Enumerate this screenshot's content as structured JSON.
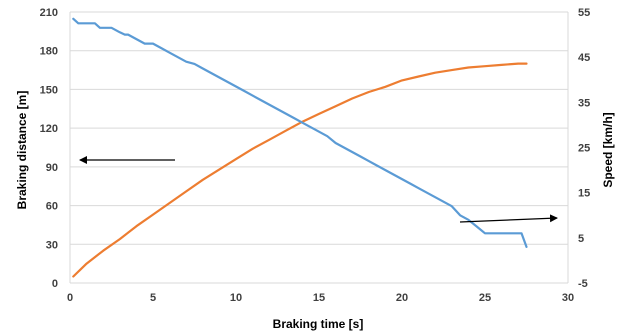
{
  "chart_data": {
    "type": "line",
    "title": "",
    "xlabel": "Braking time [s]",
    "ylabel": "Braking distance [m]",
    "y2label": "Speed [km/h]",
    "xlim": [
      0,
      30
    ],
    "ylim": [
      0,
      210
    ],
    "y2lim": [
      -5,
      55
    ],
    "xticks": [
      0,
      5,
      10,
      15,
      20,
      25,
      30
    ],
    "yticks": [
      0,
      30,
      60,
      90,
      120,
      150,
      180,
      210
    ],
    "y2ticks": [
      -5,
      5,
      15,
      25,
      35,
      45,
      55
    ],
    "grid": "horizontal",
    "legend": "none",
    "colors": {
      "speed": "#5B9BD5",
      "distance": "#ED7D31",
      "axis": "#d9d9d9",
      "grid": "#d9d9d9",
      "arrow": "#000000"
    },
    "series": [
      {
        "key": "distance",
        "axis": "left",
        "x": [
          0.2,
          1,
          2,
          3,
          4,
          5,
          6,
          7,
          8,
          9,
          10,
          11,
          12,
          13,
          14,
          15,
          16,
          17,
          18,
          19,
          20,
          21,
          22,
          23,
          24,
          25,
          26,
          27,
          27.5
        ],
        "values": [
          5,
          15,
          25,
          34,
          44,
          53,
          62,
          71,
          80,
          88,
          96,
          104,
          111,
          118,
          125,
          131,
          137,
          143,
          148,
          152,
          157,
          160,
          163,
          165,
          167,
          168,
          169,
          170,
          170
        ]
      },
      {
        "key": "speed",
        "axis": "right",
        "x": [
          0.2,
          0.5,
          0.8,
          1.5,
          1.8,
          2.5,
          3,
          3.3,
          3.5,
          4,
          4.5,
          5,
          5.5,
          6,
          6.5,
          7,
          7.5,
          8,
          8.5,
          9,
          9.5,
          10,
          10.5,
          11,
          11.5,
          12,
          12.5,
          13,
          13.5,
          14,
          14.5,
          15,
          15.5,
          16,
          16.5,
          17,
          17.5,
          18,
          18.5,
          19,
          19.5,
          20,
          20.5,
          21,
          21.5,
          22,
          22.5,
          23,
          23.5,
          24,
          24.5,
          25,
          25.5,
          26,
          26.5,
          27,
          27.2,
          27.5
        ],
        "values": [
          53.5,
          52.5,
          52.5,
          52.5,
          51.5,
          51.5,
          50.5,
          50,
          50,
          49,
          48,
          48,
          47,
          46,
          45,
          44,
          43.5,
          42.5,
          41.5,
          40.5,
          39.5,
          38.5,
          37.5,
          36.5,
          35.5,
          34.5,
          33.5,
          32.5,
          31.5,
          30.5,
          29.5,
          28.5,
          27.5,
          26,
          25,
          24,
          23,
          22,
          21,
          20,
          19,
          18,
          17,
          16,
          15,
          14,
          13,
          12,
          10,
          9,
          7.5,
          6,
          6,
          6,
          6,
          6,
          6,
          3
        ]
      }
    ]
  }
}
